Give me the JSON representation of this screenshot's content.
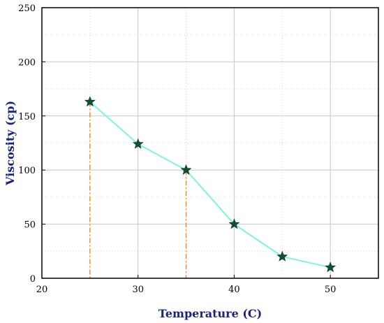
{
  "chart_data": {
    "type": "line",
    "title": "",
    "xlabel": "Temperature (C)",
    "ylabel": "Viscosity (cp)",
    "xlim": [
      20,
      55
    ],
    "ylim": [
      0,
      250
    ],
    "x_ticks": [
      20,
      30,
      40,
      50
    ],
    "y_ticks": [
      0,
      50,
      100,
      150,
      200,
      250
    ],
    "grid": true,
    "legend": "none",
    "series": [
      {
        "x": [
          25,
          30,
          35,
          40,
          45,
          50
        ],
        "y": [
          163,
          124,
          100,
          50,
          20,
          10
        ],
        "line_color": "#7ff2e0",
        "marker": "star",
        "marker_color": "#0f5132"
      }
    ],
    "annotations": [
      {
        "type": "vertical-dropline",
        "x": 25,
        "y": 163,
        "color": "#f28c28"
      },
      {
        "type": "vertical-dropline",
        "x": 35,
        "y": 100,
        "color": "#f28c28"
      }
    ]
  }
}
